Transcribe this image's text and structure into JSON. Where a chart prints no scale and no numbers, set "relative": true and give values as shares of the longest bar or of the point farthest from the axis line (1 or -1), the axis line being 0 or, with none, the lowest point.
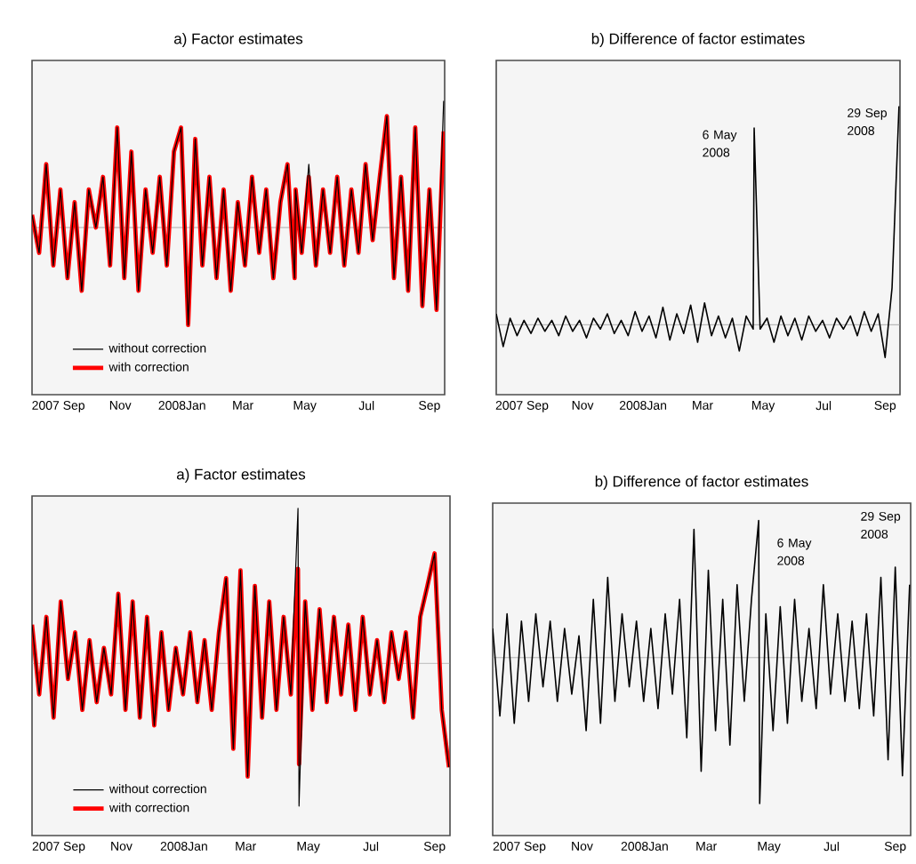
{
  "chart_data": [
    {
      "type": "line",
      "title": "a) Factor estimates",
      "relative": true,
      "legend": "bottom left",
      "xlim": [
        "2007-08-20",
        "2008-09-30"
      ],
      "xticks": [
        {
          "value": "2007-09-15",
          "label": "2007 Sep"
        },
        {
          "value": "2007-11-15",
          "label": "Nov"
        },
        {
          "value": "2008-01-15",
          "label": "2008Jan"
        },
        {
          "value": "2008-03-15",
          "label": "Mar"
        },
        {
          "value": "2008-05-15",
          "label": "May"
        },
        {
          "value": "2008-07-15",
          "label": "Jul"
        },
        {
          "value": "2008-09-15",
          "label": "Sep"
        }
      ],
      "x": [
        "2007-08-20",
        "2007-08-27",
        "2007-09-03",
        "2007-09-10",
        "2007-09-17",
        "2007-09-24",
        "2007-10-01",
        "2007-10-08",
        "2007-10-15",
        "2007-10-22",
        "2007-10-29",
        "2007-11-05",
        "2007-11-12",
        "2007-11-19",
        "2007-11-26",
        "2007-12-03",
        "2007-12-10",
        "2007-12-17",
        "2007-12-24",
        "2007-12-31",
        "2008-01-07",
        "2008-01-14",
        "2008-01-21",
        "2008-01-28",
        "2008-02-04",
        "2008-02-11",
        "2008-02-18",
        "2008-02-25",
        "2008-03-03",
        "2008-03-10",
        "2008-03-17",
        "2008-03-24",
        "2008-03-31",
        "2008-04-07",
        "2008-04-14",
        "2008-04-21",
        "2008-04-28",
        "2008-05-05",
        "2008-05-06",
        "2008-05-12",
        "2008-05-19",
        "2008-05-26",
        "2008-06-02",
        "2008-06-09",
        "2008-06-16",
        "2008-06-23",
        "2008-06-30",
        "2008-07-07",
        "2008-07-14",
        "2008-07-21",
        "2008-07-28",
        "2008-08-04",
        "2008-08-11",
        "2008-08-18",
        "2008-08-25",
        "2008-09-01",
        "2008-09-08",
        "2008-09-15",
        "2008-09-22",
        "2008-09-29"
      ],
      "series": [
        {
          "name": "without correction",
          "color": "#000000",
          "values": [
            0.1,
            -0.2,
            0.5,
            -0.3,
            0.3,
            -0.4,
            0.2,
            -0.5,
            0.3,
            0.0,
            0.4,
            -0.3,
            0.79,
            -0.4,
            0.6,
            -0.5,
            0.3,
            -0.2,
            0.4,
            -0.3,
            0.6,
            0.79,
            -0.77,
            0.7,
            -0.3,
            0.4,
            -0.4,
            0.3,
            -0.5,
            0.2,
            -0.3,
            0.4,
            -0.2,
            0.3,
            -0.4,
            0.2,
            0.5,
            -0.4,
            0.3,
            -0.2,
            0.5,
            -0.3,
            0.3,
            -0.2,
            0.4,
            -0.3,
            0.3,
            -0.2,
            0.5,
            -0.1,
            0.4,
            0.88,
            -0.4,
            0.4,
            -0.5,
            0.79,
            -0.62,
            0.3,
            -0.65,
            1.0
          ]
        },
        {
          "name": "with correction",
          "color": "#ff0000",
          "values": [
            0.1,
            -0.2,
            0.5,
            -0.3,
            0.3,
            -0.4,
            0.2,
            -0.5,
            0.3,
            0.0,
            0.4,
            -0.3,
            0.79,
            -0.4,
            0.6,
            -0.5,
            0.3,
            -0.2,
            0.4,
            -0.3,
            0.6,
            0.79,
            -0.77,
            0.7,
            -0.3,
            0.4,
            -0.4,
            0.3,
            -0.5,
            0.2,
            -0.3,
            0.4,
            -0.2,
            0.3,
            -0.4,
            0.2,
            0.5,
            -0.4,
            0.3,
            -0.2,
            0.4,
            -0.3,
            0.3,
            -0.2,
            0.4,
            -0.3,
            0.3,
            -0.2,
            0.5,
            -0.1,
            0.4,
            0.88,
            -0.4,
            0.4,
            -0.5,
            0.79,
            -0.62,
            0.3,
            -0.65,
            0.76
          ]
        }
      ]
    },
    {
      "type": "line",
      "title": "b) Difference of factor estimates",
      "relative": true,
      "xlim": [
        "2007-08-20",
        "2008-09-30"
      ],
      "xticks": [
        {
          "value": "2007-09-15",
          "label": "2007 Sep"
        },
        {
          "value": "2007-11-15",
          "label": "Nov"
        },
        {
          "value": "2008-01-15",
          "label": "2008Jan"
        },
        {
          "value": "2008-03-15",
          "label": "Mar"
        },
        {
          "value": "2008-05-15",
          "label": "May"
        },
        {
          "value": "2008-07-15",
          "label": "Jul"
        },
        {
          "value": "2008-09-15",
          "label": "Sep"
        }
      ],
      "x": [
        "2007-08-20",
        "2007-08-27",
        "2007-09-03",
        "2007-09-10",
        "2007-09-17",
        "2007-09-24",
        "2007-10-01",
        "2007-10-08",
        "2007-10-15",
        "2007-10-22",
        "2007-10-29",
        "2007-11-05",
        "2007-11-12",
        "2007-11-19",
        "2007-11-26",
        "2007-12-03",
        "2007-12-10",
        "2007-12-17",
        "2007-12-24",
        "2007-12-31",
        "2008-01-07",
        "2008-01-14",
        "2008-01-21",
        "2008-01-28",
        "2008-02-04",
        "2008-02-11",
        "2008-02-18",
        "2008-02-25",
        "2008-03-03",
        "2008-03-10",
        "2008-03-17",
        "2008-03-24",
        "2008-03-31",
        "2008-04-07",
        "2008-04-14",
        "2008-04-21",
        "2008-04-28",
        "2008-05-05",
        "2008-05-06",
        "2008-05-12",
        "2008-05-19",
        "2008-05-26",
        "2008-06-02",
        "2008-06-09",
        "2008-06-16",
        "2008-06-23",
        "2008-06-30",
        "2008-07-07",
        "2008-07-14",
        "2008-07-21",
        "2008-07-28",
        "2008-08-04",
        "2008-08-11",
        "2008-08-18",
        "2008-08-25",
        "2008-09-01",
        "2008-09-08",
        "2008-09-15",
        "2008-09-22",
        "2008-09-29"
      ],
      "series": [
        {
          "color": "#000000",
          "values": [
            0.05,
            -0.1,
            0.03,
            -0.05,
            0.02,
            -0.04,
            0.03,
            -0.03,
            0.02,
            -0.05,
            0.04,
            -0.03,
            0.02,
            -0.06,
            0.03,
            -0.02,
            0.05,
            -0.04,
            0.02,
            -0.05,
            0.06,
            -0.03,
            0.04,
            -0.06,
            0.08,
            -0.07,
            0.05,
            -0.04,
            0.09,
            -0.08,
            0.1,
            -0.05,
            0.04,
            -0.06,
            0.03,
            -0.12,
            0.04,
            -0.02,
            0.9,
            -0.02,
            0.03,
            -0.08,
            0.04,
            -0.05,
            0.03,
            -0.07,
            0.04,
            -0.03,
            0.02,
            -0.06,
            0.03,
            -0.02,
            0.04,
            -0.05,
            0.06,
            -0.03,
            0.05,
            -0.15,
            0.17,
            1.0
          ]
        }
      ],
      "annotations": [
        {
          "text": "6 May 2008",
          "x": "2008-05-06",
          "y": 0.9
        },
        {
          "text": "29 Sep 2008",
          "x": "2008-09-29",
          "y": 1.0
        }
      ]
    },
    {
      "type": "line",
      "title": "a) Factor estimates",
      "relative": true,
      "legend": "bottom left",
      "xlim": [
        "2007-08-20",
        "2008-09-30"
      ],
      "xticks": [
        {
          "value": "2007-09-15",
          "label": "2007 Sep"
        },
        {
          "value": "2007-11-15",
          "label": "Nov"
        },
        {
          "value": "2008-01-15",
          "label": "2008Jan"
        },
        {
          "value": "2008-03-15",
          "label": "Mar"
        },
        {
          "value": "2008-05-15",
          "label": "May"
        },
        {
          "value": "2008-07-15",
          "label": "Jul"
        },
        {
          "value": "2008-09-15",
          "label": "Sep"
        }
      ],
      "x": [
        "2007-08-20",
        "2007-08-27",
        "2007-09-03",
        "2007-09-10",
        "2007-09-17",
        "2007-09-24",
        "2007-10-01",
        "2007-10-08",
        "2007-10-15",
        "2007-10-22",
        "2007-10-29",
        "2007-11-05",
        "2007-11-12",
        "2007-11-19",
        "2007-11-26",
        "2007-12-03",
        "2007-12-10",
        "2007-12-17",
        "2007-12-24",
        "2007-12-31",
        "2008-01-07",
        "2008-01-14",
        "2008-01-21",
        "2008-01-28",
        "2008-02-04",
        "2008-02-11",
        "2008-02-18",
        "2008-02-25",
        "2008-03-03",
        "2008-03-10",
        "2008-03-17",
        "2008-03-24",
        "2008-03-31",
        "2008-04-07",
        "2008-04-14",
        "2008-04-21",
        "2008-04-28",
        "2008-05-05",
        "2008-05-06",
        "2008-05-12",
        "2008-05-19",
        "2008-05-26",
        "2008-06-02",
        "2008-06-09",
        "2008-06-16",
        "2008-06-23",
        "2008-06-30",
        "2008-07-07",
        "2008-07-14",
        "2008-07-21",
        "2008-07-28",
        "2008-08-04",
        "2008-08-11",
        "2008-08-18",
        "2008-08-25",
        "2008-09-01",
        "2008-09-08",
        "2008-09-15",
        "2008-09-22",
        "2008-09-29"
      ],
      "series": [
        {
          "name": "without correction",
          "color": "#000000",
          "values": [
            0.25,
            -0.2,
            0.3,
            -0.35,
            0.4,
            -0.1,
            0.2,
            -0.3,
            0.15,
            -0.25,
            0.1,
            -0.2,
            0.45,
            -0.3,
            0.4,
            -0.35,
            0.3,
            -0.4,
            0.2,
            -0.3,
            0.1,
            -0.2,
            0.2,
            -0.25,
            0.15,
            -0.3,
            0.2,
            0.55,
            -0.55,
            0.6,
            -0.73,
            0.5,
            -0.35,
            0.4,
            -0.3,
            0.3,
            -0.2,
            1.0,
            -0.92,
            0.4,
            -0.3,
            0.35,
            -0.25,
            0.3,
            -0.2,
            0.25,
            -0.3,
            0.3,
            -0.2,
            0.15,
            -0.25,
            0.2,
            -0.1,
            0.2,
            -0.35,
            0.3,
            0.5,
            0.71,
            -0.3,
            -0.67
          ]
        },
        {
          "name": "with correction",
          "color": "#ff0000",
          "values": [
            0.25,
            -0.2,
            0.3,
            -0.35,
            0.4,
            -0.1,
            0.2,
            -0.3,
            0.15,
            -0.25,
            0.1,
            -0.2,
            0.45,
            -0.3,
            0.4,
            -0.35,
            0.3,
            -0.4,
            0.2,
            -0.3,
            0.1,
            -0.2,
            0.2,
            -0.25,
            0.15,
            -0.3,
            0.2,
            0.55,
            -0.55,
            0.6,
            -0.73,
            0.5,
            -0.35,
            0.4,
            -0.3,
            0.3,
            -0.2,
            0.61,
            -0.65,
            0.4,
            -0.3,
            0.35,
            -0.25,
            0.3,
            -0.2,
            0.25,
            -0.3,
            0.3,
            -0.2,
            0.15,
            -0.25,
            0.2,
            -0.1,
            0.2,
            -0.35,
            0.3,
            0.5,
            0.71,
            -0.3,
            -0.67
          ]
        }
      ]
    },
    {
      "type": "line",
      "title": "b) Difference of factor estimates",
      "relative": true,
      "xlim": [
        "2007-08-20",
        "2008-09-30"
      ],
      "xticks": [
        {
          "value": "2007-09-15",
          "label": "2007 Sep"
        },
        {
          "value": "2007-11-15",
          "label": "Nov"
        },
        {
          "value": "2008-01-15",
          "label": "2008Jan"
        },
        {
          "value": "2008-03-15",
          "label": "Mar"
        },
        {
          "value": "2008-05-15",
          "label": "May"
        },
        {
          "value": "2008-07-15",
          "label": "Jul"
        },
        {
          "value": "2008-09-15",
          "label": "Sep"
        }
      ],
      "x": [
        "2007-08-20",
        "2007-08-27",
        "2007-09-03",
        "2007-09-10",
        "2007-09-17",
        "2007-09-24",
        "2007-10-01",
        "2007-10-08",
        "2007-10-15",
        "2007-10-22",
        "2007-10-29",
        "2007-11-05",
        "2007-11-12",
        "2007-11-19",
        "2007-11-26",
        "2007-12-03",
        "2007-12-10",
        "2007-12-17",
        "2007-12-24",
        "2007-12-31",
        "2008-01-07",
        "2008-01-14",
        "2008-01-21",
        "2008-01-28",
        "2008-02-04",
        "2008-02-11",
        "2008-02-18",
        "2008-02-25",
        "2008-03-03",
        "2008-03-10",
        "2008-03-17",
        "2008-03-24",
        "2008-03-31",
        "2008-04-07",
        "2008-04-14",
        "2008-04-21",
        "2008-04-28",
        "2008-05-05",
        "2008-05-06",
        "2008-05-12",
        "2008-05-19",
        "2008-05-26",
        "2008-06-02",
        "2008-06-09",
        "2008-06-16",
        "2008-06-23",
        "2008-06-30",
        "2008-07-07",
        "2008-07-14",
        "2008-07-21",
        "2008-07-28",
        "2008-08-04",
        "2008-08-11",
        "2008-08-18",
        "2008-08-25",
        "2008-09-01",
        "2008-09-08",
        "2008-09-15",
        "2008-09-22",
        "2008-09-29"
      ],
      "series": [
        {
          "color": "#000000",
          "values": [
            0.2,
            -0.4,
            0.3,
            -0.45,
            0.25,
            -0.3,
            0.3,
            -0.2,
            0.25,
            -0.3,
            0.2,
            -0.25,
            0.15,
            -0.5,
            0.4,
            -0.45,
            0.55,
            -0.3,
            0.3,
            -0.2,
            0.25,
            -0.3,
            0.2,
            -0.35,
            0.3,
            -0.25,
            0.4,
            -0.55,
            0.88,
            -0.78,
            0.6,
            -0.5,
            0.4,
            -0.6,
            0.5,
            -0.3,
            0.4,
            0.94,
            -1.0,
            0.3,
            -0.5,
            0.35,
            -0.45,
            0.4,
            -0.3,
            0.2,
            -0.35,
            0.5,
            -0.25,
            0.3,
            -0.3,
            0.25,
            -0.35,
            0.3,
            -0.4,
            0.55,
            -0.7,
            0.62,
            -0.81,
            0.5
          ]
        }
      ],
      "annotations": [
        "6 May 2008",
        "29 Sep 2008"
      ]
    }
  ]
}
